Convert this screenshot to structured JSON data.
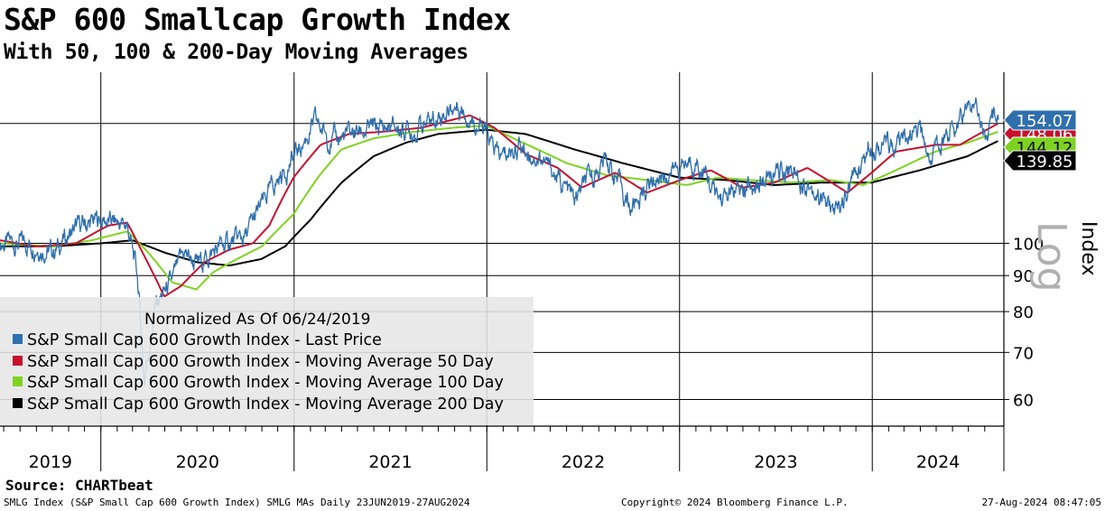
{
  "header": {
    "title": "S&P 600 Smallcap Growth Index",
    "subtitle": "With 50, 100 & 200-Day Moving Averages"
  },
  "footer": {
    "source": "Source: CHARTbeat",
    "ticker_info": "SMLG Index (S&P Small Cap 600 Growth Index) SMLG MAs  Daily 23JUN2019-27AUG2024",
    "copyright": "Copyright© 2024 Bloomberg Finance L.P.",
    "timestamp": "27-Aug-2024 08:47:05"
  },
  "legend": {
    "header": "Normalized As Of 06/24/2019",
    "items": [
      {
        "label": "S&P Small Cap 600 Growth Index - Last Price",
        "color": "#2e6fae"
      },
      {
        "label": "S&P Small Cap 600 Growth Index - Moving Average 50 Day",
        "color": "#c8102e"
      },
      {
        "label": "S&P Small Cap 600 Growth Index - Moving Average 100 Day",
        "color": "#7ed321"
      },
      {
        "label": "S&P Small Cap 600 Growth Index - Moving Average 200 Day",
        "color": "#000000"
      }
    ]
  },
  "chart_data": {
    "type": "line",
    "scale": "log",
    "ylabel": "Index",
    "scale_label": "Log",
    "ylim": [
      55,
      175
    ],
    "y_ticks": [
      60,
      70,
      80,
      90,
      100
    ],
    "x_range": [
      "2019-06-24",
      "2024-08-27"
    ],
    "x_labels": [
      "2019",
      "2020",
      "2021",
      "2022",
      "2023",
      "2024"
    ],
    "grid": true,
    "last_values": [
      {
        "series": "Last Price",
        "value": "154.07",
        "color": "#2e6fae"
      },
      {
        "series": "MA 50",
        "value": "148.06",
        "color": "#c8102e"
      },
      {
        "series": "MA 100",
        "value": "144.12",
        "color": "#7ed321"
      },
      {
        "series": "MA 200",
        "value": "139.85",
        "color": "#000000"
      }
    ],
    "series": [
      {
        "name": "S&P Small Cap 600 Growth Index - Last Price",
        "color": "#2e6fae",
        "points": [
          [
            "2019-06-24",
            100
          ],
          [
            "2019-09-01",
            100
          ],
          [
            "2019-10-01",
            97
          ],
          [
            "2019-11-15",
            105
          ],
          [
            "2020-01-01",
            108
          ],
          [
            "2020-02-20",
            106
          ],
          [
            "2020-03-10",
            90
          ],
          [
            "2020-03-23",
            64
          ],
          [
            "2020-04-15",
            82
          ],
          [
            "2020-05-15",
            88
          ],
          [
            "2020-06-08",
            97
          ],
          [
            "2020-07-01",
            93
          ],
          [
            "2020-08-15",
            99
          ],
          [
            "2020-10-01",
            102
          ],
          [
            "2020-11-15",
            118
          ],
          [
            "2020-12-31",
            132
          ],
          [
            "2021-02-10",
            148
          ],
          [
            "2021-03-15",
            140
          ],
          [
            "2021-05-01",
            144
          ],
          [
            "2021-06-15",
            146
          ],
          [
            "2021-08-15",
            145
          ],
          [
            "2021-11-08",
            157
          ],
          [
            "2021-12-15",
            148
          ],
          [
            "2022-01-27",
            132
          ],
          [
            "2022-03-01",
            138
          ],
          [
            "2022-04-15",
            132
          ],
          [
            "2022-06-16",
            115
          ],
          [
            "2022-08-15",
            132
          ],
          [
            "2022-09-30",
            112
          ],
          [
            "2022-11-15",
            124
          ],
          [
            "2023-02-02",
            131
          ],
          [
            "2023-03-15",
            116
          ],
          [
            "2023-05-01",
            118
          ],
          [
            "2023-07-31",
            128
          ],
          [
            "2023-10-27",
            110
          ],
          [
            "2023-12-31",
            140
          ],
          [
            "2024-02-15",
            137
          ],
          [
            "2024-03-31",
            143
          ],
          [
            "2024-04-19",
            133
          ],
          [
            "2024-07-16",
            160
          ],
          [
            "2024-08-05",
            142
          ],
          [
            "2024-08-27",
            154.07
          ]
        ]
      },
      {
        "name": "S&P Small Cap 600 Growth Index - Moving Average 50 Day",
        "color": "#c8102e",
        "points": [
          [
            "2019-06-24",
            101
          ],
          [
            "2019-09-01",
            99
          ],
          [
            "2019-11-15",
            100
          ],
          [
            "2020-01-15",
            106
          ],
          [
            "2020-02-20",
            107
          ],
          [
            "2020-03-20",
            97
          ],
          [
            "2020-04-30",
            84
          ],
          [
            "2020-06-01",
            87
          ],
          [
            "2020-07-15",
            94
          ],
          [
            "2020-09-01",
            98
          ],
          [
            "2020-10-15",
            100
          ],
          [
            "2020-11-15",
            106
          ],
          [
            "2020-12-31",
            124
          ],
          [
            "2021-02-20",
            138
          ],
          [
            "2021-04-15",
            143
          ],
          [
            "2021-06-15",
            144
          ],
          [
            "2021-09-01",
            146
          ],
          [
            "2021-11-30",
            152
          ],
          [
            "2022-01-15",
            146
          ],
          [
            "2022-03-15",
            134
          ],
          [
            "2022-05-15",
            128
          ],
          [
            "2022-06-30",
            120
          ],
          [
            "2022-09-01",
            126
          ],
          [
            "2022-10-31",
            118
          ],
          [
            "2023-01-15",
            124
          ],
          [
            "2023-03-01",
            127
          ],
          [
            "2023-04-30",
            120
          ],
          [
            "2023-06-30",
            122
          ],
          [
            "2023-08-31",
            128
          ],
          [
            "2023-11-15",
            118
          ],
          [
            "2023-12-31",
            126
          ],
          [
            "2024-02-15",
            135
          ],
          [
            "2024-04-30",
            138
          ],
          [
            "2024-06-15",
            138
          ],
          [
            "2024-08-27",
            148.06
          ]
        ]
      },
      {
        "name": "S&P Small Cap 600 Growth Index - Moving Average 100 Day",
        "color": "#7ed321",
        "points": [
          [
            "2019-06-24",
            100
          ],
          [
            "2019-10-01",
            99
          ],
          [
            "2019-12-15",
            101
          ],
          [
            "2020-02-20",
            104
          ],
          [
            "2020-03-31",
            97
          ],
          [
            "2020-05-15",
            88
          ],
          [
            "2020-06-30",
            86
          ],
          [
            "2020-08-01",
            91
          ],
          [
            "2020-09-15",
            95
          ],
          [
            "2020-11-01",
            99
          ],
          [
            "2020-12-31",
            110
          ],
          [
            "2021-02-15",
            124
          ],
          [
            "2021-04-01",
            136
          ],
          [
            "2021-06-01",
            141
          ],
          [
            "2021-08-15",
            144
          ],
          [
            "2021-11-01",
            146
          ],
          [
            "2021-12-31",
            147
          ],
          [
            "2022-03-01",
            140
          ],
          [
            "2022-06-01",
            130
          ],
          [
            "2022-08-15",
            125
          ],
          [
            "2022-10-31",
            123
          ],
          [
            "2023-01-15",
            121
          ],
          [
            "2023-03-15",
            124
          ],
          [
            "2023-05-15",
            123
          ],
          [
            "2023-08-01",
            122
          ],
          [
            "2023-10-15",
            123
          ],
          [
            "2023-12-15",
            121
          ],
          [
            "2024-02-15",
            127
          ],
          [
            "2024-04-30",
            135
          ],
          [
            "2024-06-30",
            139
          ],
          [
            "2024-08-27",
            144.12
          ]
        ]
      },
      {
        "name": "S&P Small Cap 600 Growth Index - Moving Average 200 Day",
        "color": "#000000",
        "points": [
          [
            "2019-06-24",
            99
          ],
          [
            "2019-10-01",
            99
          ],
          [
            "2020-01-01",
            100
          ],
          [
            "2020-03-01",
            101
          ],
          [
            "2020-05-01",
            97
          ],
          [
            "2020-07-01",
            94
          ],
          [
            "2020-09-01",
            93
          ],
          [
            "2020-10-31",
            95
          ],
          [
            "2020-12-15",
            99
          ],
          [
            "2021-02-01",
            108
          ],
          [
            "2021-04-01",
            122
          ],
          [
            "2021-06-01",
            133
          ],
          [
            "2021-08-01",
            139
          ],
          [
            "2021-10-01",
            143
          ],
          [
            "2021-12-31",
            145
          ],
          [
            "2022-03-15",
            143
          ],
          [
            "2022-06-15",
            136
          ],
          [
            "2022-09-15",
            130
          ],
          [
            "2022-12-31",
            124
          ],
          [
            "2023-03-31",
            123
          ],
          [
            "2023-06-30",
            121
          ],
          [
            "2023-09-30",
            122
          ],
          [
            "2023-12-31",
            122
          ],
          [
            "2024-03-31",
            127
          ],
          [
            "2024-06-30",
            133
          ],
          [
            "2024-08-27",
            139.85
          ]
        ]
      }
    ]
  }
}
